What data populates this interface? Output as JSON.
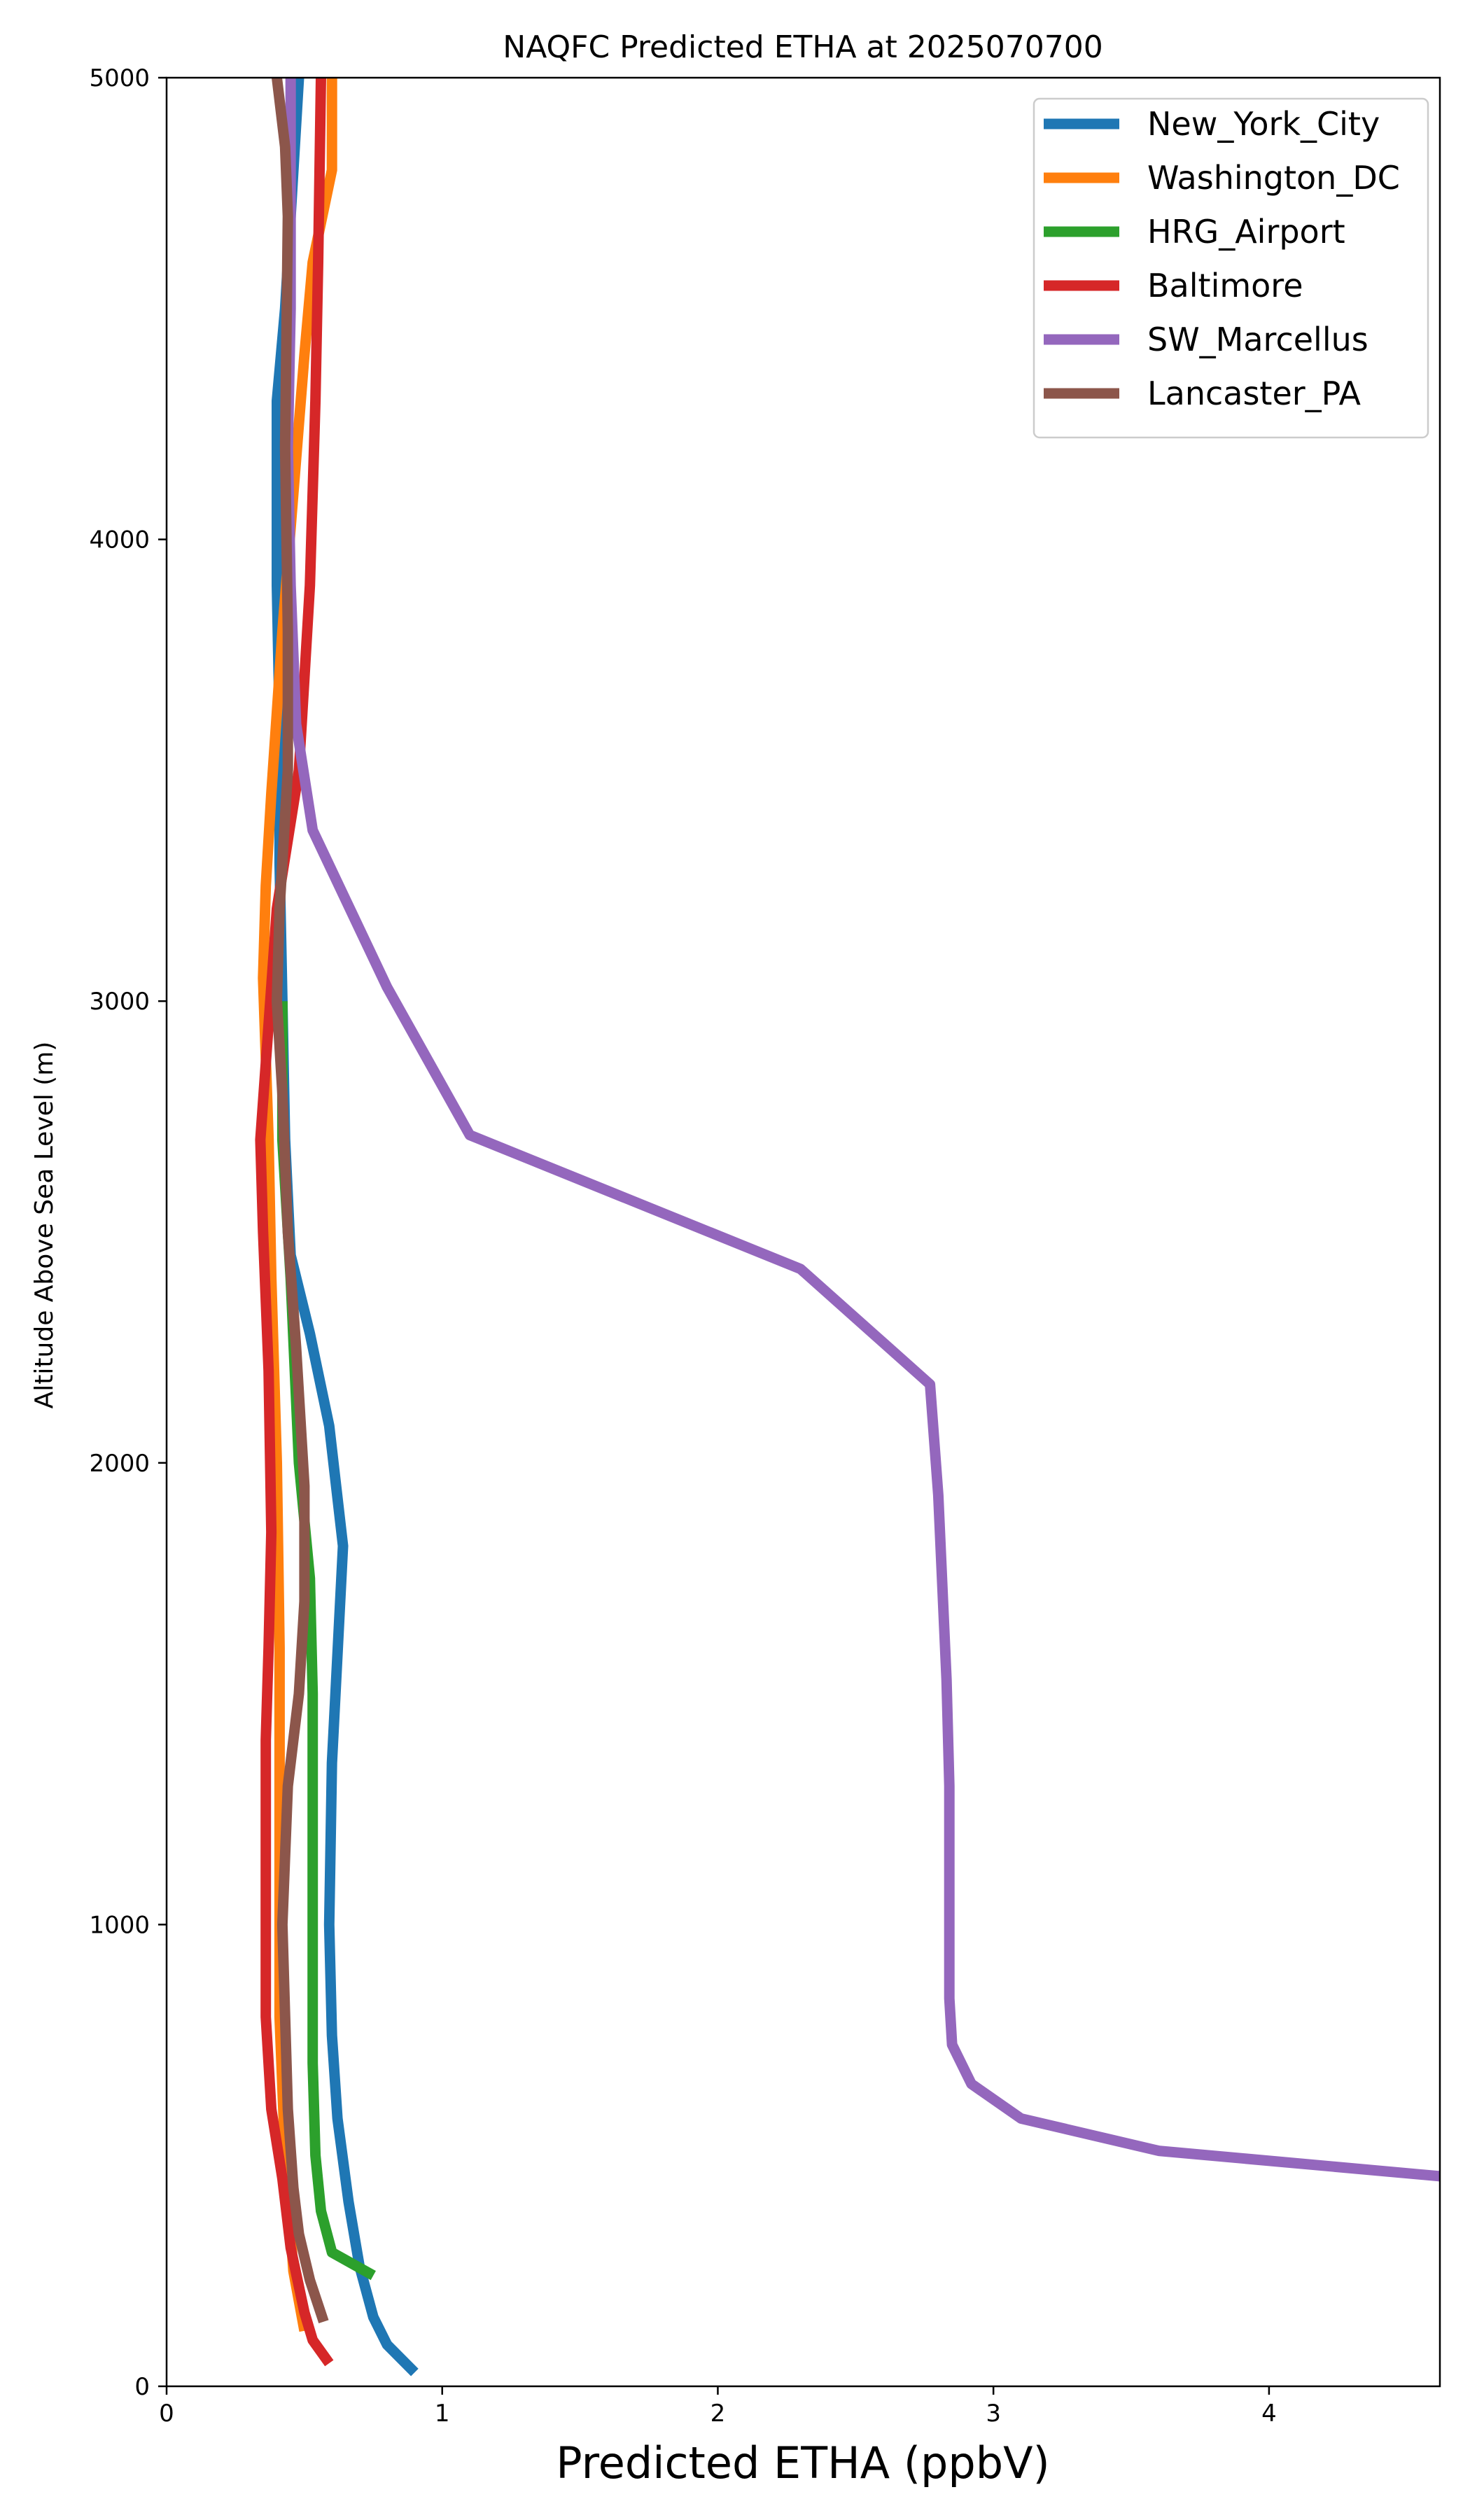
{
  "chart_data": {
    "type": "line",
    "title": "NAQFC Predicted ETHA at 2025070700",
    "xlabel": "Predicted ETHA (ppbV)",
    "ylabel": "Altitude Above Sea Level (m)",
    "xlim": [
      0,
      4.62
    ],
    "ylim": [
      0,
      5000
    ],
    "xticks": [
      0,
      1,
      2,
      3,
      4
    ],
    "yticks": [
      0,
      1000,
      2000,
      3000,
      4000,
      5000
    ],
    "grid": false,
    "legend_position": "top-right",
    "series": [
      {
        "name": "New_York_City",
        "color": "#1f77b4",
        "points": [
          [
            0.9,
            30
          ],
          [
            0.8,
            90
          ],
          [
            0.75,
            150
          ],
          [
            0.7,
            260
          ],
          [
            0.66,
            400
          ],
          [
            0.62,
            580
          ],
          [
            0.6,
            760
          ],
          [
            0.59,
            1000
          ],
          [
            0.6,
            1350
          ],
          [
            0.64,
            1820
          ],
          [
            0.59,
            2080
          ],
          [
            0.52,
            2280
          ],
          [
            0.45,
            2450
          ],
          [
            0.43,
            2700
          ],
          [
            0.42,
            3000
          ],
          [
            0.41,
            3300
          ],
          [
            0.41,
            3600
          ],
          [
            0.4,
            3900
          ],
          [
            0.4,
            4300
          ],
          [
            0.43,
            4500
          ],
          [
            0.45,
            4700
          ],
          [
            0.48,
            5000
          ]
        ]
      },
      {
        "name": "Washington_DC",
        "color": "#ff7f0e",
        "points": [
          [
            0.5,
            120
          ],
          [
            0.46,
            250
          ],
          [
            0.43,
            500
          ],
          [
            0.41,
            800
          ],
          [
            0.41,
            1000
          ],
          [
            0.41,
            1300
          ],
          [
            0.41,
            1600
          ],
          [
            0.4,
            2000
          ],
          [
            0.38,
            2400
          ],
          [
            0.37,
            2700
          ],
          [
            0.35,
            3050
          ],
          [
            0.36,
            3250
          ],
          [
            0.38,
            3450
          ],
          [
            0.42,
            3800
          ],
          [
            0.46,
            4100
          ],
          [
            0.5,
            4400
          ],
          [
            0.53,
            4600
          ],
          [
            0.6,
            4800
          ],
          [
            0.6,
            5000
          ]
        ]
      },
      {
        "name": "HRG_Airport",
        "color": "#2ca02c",
        "points": [
          [
            0.75,
            240
          ],
          [
            0.6,
            290
          ],
          [
            0.56,
            380
          ],
          [
            0.54,
            500
          ],
          [
            0.53,
            700
          ],
          [
            0.53,
            1000
          ],
          [
            0.53,
            1500
          ],
          [
            0.52,
            1750
          ],
          [
            0.48,
            2000
          ],
          [
            0.45,
            2400
          ],
          [
            0.42,
            2700
          ],
          [
            0.42,
            3000
          ]
        ]
      },
      {
        "name": "Baltimore",
        "color": "#d62728",
        "points": [
          [
            0.59,
            50
          ],
          [
            0.53,
            100
          ],
          [
            0.5,
            160
          ],
          [
            0.45,
            300
          ],
          [
            0.42,
            450
          ],
          [
            0.38,
            600
          ],
          [
            0.36,
            800
          ],
          [
            0.36,
            1000
          ],
          [
            0.36,
            1400
          ],
          [
            0.37,
            1600
          ],
          [
            0.38,
            1850
          ],
          [
            0.37,
            2200
          ],
          [
            0.35,
            2500
          ],
          [
            0.34,
            2700
          ],
          [
            0.4,
            3200
          ],
          [
            0.48,
            3500
          ],
          [
            0.5,
            3700
          ],
          [
            0.52,
            3900
          ],
          [
            0.54,
            4300
          ],
          [
            0.55,
            4600
          ],
          [
            0.56,
            5000
          ]
        ]
      },
      {
        "name": "SW_Marcellus",
        "color": "#9467bd",
        "points": [
          [
            4.62,
            455
          ],
          [
            3.6,
            510
          ],
          [
            3.1,
            580
          ],
          [
            2.92,
            655
          ],
          [
            2.85,
            740
          ],
          [
            2.84,
            840
          ],
          [
            2.84,
            1000
          ],
          [
            2.84,
            1300
          ],
          [
            2.83,
            1530
          ],
          [
            2.8,
            1930
          ],
          [
            2.77,
            2170
          ],
          [
            2.3,
            2420
          ],
          [
            1.1,
            2710
          ],
          [
            0.8,
            3030
          ],
          [
            0.53,
            3370
          ],
          [
            0.47,
            3600
          ],
          [
            0.45,
            3900
          ],
          [
            0.44,
            4200
          ],
          [
            0.45,
            4500
          ],
          [
            0.45,
            5000
          ]
        ]
      },
      {
        "name": "Lancaster_PA",
        "color": "#8c564b",
        "points": [
          [
            0.57,
            140
          ],
          [
            0.52,
            230
          ],
          [
            0.48,
            330
          ],
          [
            0.46,
            430
          ],
          [
            0.44,
            600
          ],
          [
            0.43,
            800
          ],
          [
            0.42,
            1000
          ],
          [
            0.44,
            1300
          ],
          [
            0.48,
            1500
          ],
          [
            0.5,
            1700
          ],
          [
            0.5,
            1950
          ],
          [
            0.47,
            2250
          ],
          [
            0.44,
            2500
          ],
          [
            0.42,
            2800
          ],
          [
            0.4,
            3000
          ],
          [
            0.41,
            3200
          ],
          [
            0.44,
            3500
          ],
          [
            0.44,
            3800
          ],
          [
            0.43,
            4200
          ],
          [
            0.44,
            4700
          ],
          [
            0.43,
            4850
          ],
          [
            0.4,
            5000
          ]
        ]
      }
    ]
  }
}
